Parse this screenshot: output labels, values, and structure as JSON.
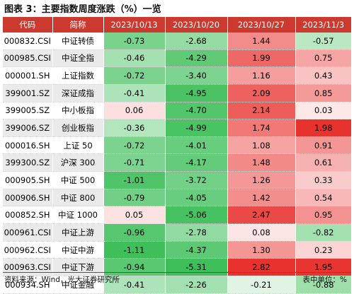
{
  "title": "图表 3：主要指数周度涨跌（%）一览",
  "columns": [
    "代码",
    "简称",
    "2023/10/13",
    "2023/10/20",
    "2023/10/27",
    "2023/11/3"
  ],
  "rows": [
    {
      "code": "000832.CSI",
      "name": "中证转债",
      "values": [
        "-0.73",
        "-2.68",
        "1.44",
        "-0.57"
      ]
    },
    {
      "code": "000985.CSI",
      "name": "中证全指",
      "values": [
        "-0.46",
        "-4.29",
        "1.99",
        "0.75"
      ]
    },
    {
      "code": "000001.SH",
      "name": "上证指数",
      "values": [
        "-0.72",
        "-3.40",
        "1.16",
        "0.43"
      ]
    },
    {
      "code": "399001.SZ",
      "name": "深证成指",
      "values": [
        "-0.41",
        "-4.95",
        "2.09",
        "0.85"
      ]
    },
    {
      "code": "399005.SZ",
      "name": "中小板指",
      "values": [
        "0.06",
        "-4.70",
        "2.14",
        "0.03"
      ]
    },
    {
      "code": "399006.SZ",
      "name": "创业板指",
      "values": [
        "-0.36",
        "-4.99",
        "1.74",
        "1.98"
      ]
    },
    {
      "code": "000016.SH",
      "name": "上证 50",
      "values": [
        "-0.72",
        "-4.01",
        "1.08",
        "0.91"
      ]
    },
    {
      "code": "399300.SZ",
      "name": "沪深 300",
      "values": [
        "-0.71",
        "-4.17",
        "1.48",
        "0.61"
      ]
    },
    {
      "code": "000905.SH",
      "name": "中证 500",
      "values": [
        "-1.01",
        "-3.72",
        "1.26",
        "0.33"
      ]
    },
    {
      "code": "000906.SH",
      "name": "中证 800",
      "values": [
        "-0.79",
        "-4.05",
        "1.42",
        "0.54"
      ]
    },
    {
      "code": "000852.SH",
      "name": "中证 1000",
      "values": [
        "0.05",
        "-5.06",
        "2.47",
        "0.95"
      ]
    },
    {
      "code": "000961.CSI",
      "name": "中证上游",
      "values": [
        "-0.96",
        "-2.78",
        "0.08",
        "-0.82"
      ]
    },
    {
      "code": "000962.CSI",
      "name": "中证中游",
      "values": [
        "-1.11",
        "-4.37",
        "1.30",
        "0.23"
      ]
    },
    {
      "code": "000963.CSI",
      "name": "中证下游",
      "values": [
        "-0.94",
        "-5.31",
        "2.82",
        "1.95"
      ]
    },
    {
      "code": "000934.SH",
      "name": "中证金融",
      "values": [
        "-0.41",
        "-2.26",
        "-0.21",
        "-0.88"
      ]
    }
  ],
  "colors": {
    "header_bg": "#cc3a2f",
    "positive": "#e8322e",
    "negative": "#3fbf5a"
  },
  "source": "资料来源：Wind，光大证券研究所",
  "unit": "表中单位：%"
}
